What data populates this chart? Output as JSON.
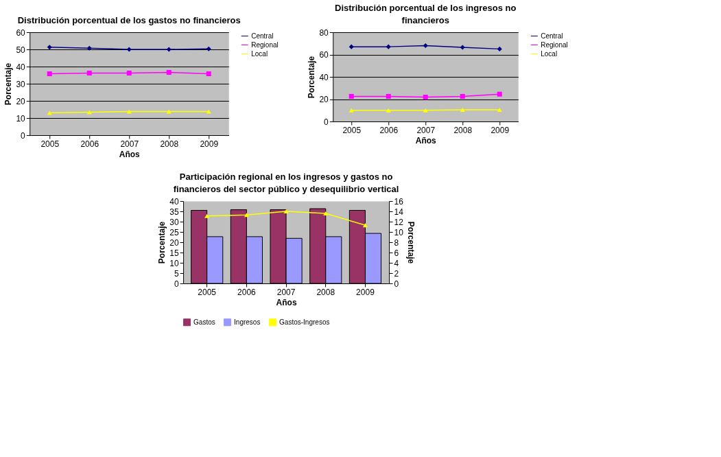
{
  "chart_data": [
    {
      "type": "line",
      "title": "Distribución porcentual de los gastos no financieros",
      "xlabel": "Años",
      "ylabel": "Porcentaje",
      "categories": [
        "2005",
        "2006",
        "2007",
        "2008",
        "2009"
      ],
      "ylim": [
        0,
        60
      ],
      "yticks": [
        0,
        10,
        20,
        30,
        40,
        50,
        60
      ],
      "grid": "y",
      "legend": "right",
      "series": [
        {
          "name": "Central",
          "color": "#000080",
          "marker": "diamond",
          "values": [
            51.3,
            50.7,
            50.0,
            50.0,
            50.3
          ]
        },
        {
          "name": "Regional",
          "color": "#ff00ff",
          "marker": "square",
          "values": [
            35.8,
            36.2,
            36.2,
            36.6,
            35.8
          ]
        },
        {
          "name": "Local",
          "color": "#ffff00",
          "marker": "triangle",
          "values": [
            13.0,
            13.4,
            13.8,
            13.8,
            13.8
          ]
        }
      ]
    },
    {
      "type": "line",
      "title": "Distribución porcentual de los ingresos no\nfinancieros",
      "xlabel": "Años",
      "ylabel": "Porcentaje",
      "categories": [
        "2005",
        "2006",
        "2007",
        "2008",
        "2009"
      ],
      "ylim": [
        0,
        80
      ],
      "yticks": [
        0,
        20,
        40,
        60,
        80
      ],
      "grid": "y",
      "legend": "right",
      "series": [
        {
          "name": "Central",
          "color": "#000080",
          "marker": "diamond",
          "values": [
            67.0,
            67.0,
            68.0,
            66.5,
            65.0
          ]
        },
        {
          "name": "Regional",
          "color": "#ff00ff",
          "marker": "square",
          "values": [
            22.5,
            22.5,
            21.8,
            22.5,
            24.5
          ]
        },
        {
          "name": "Local",
          "color": "#ffff00",
          "marker": "triangle",
          "values": [
            10.0,
            10.0,
            10.0,
            10.5,
            10.5
          ]
        }
      ]
    },
    {
      "type": "bar",
      "title": "Participación regional en los ingresos y gastos no\nfinancieros del sector público y desequilibrio vertical",
      "xlabel": "Años",
      "ylabel": "Porcentaje",
      "y2label": "Porcentaje",
      "categories": [
        "2005",
        "2006",
        "2007",
        "2008",
        "2009"
      ],
      "ylim": [
        0,
        40
      ],
      "yticks": [
        0,
        5,
        10,
        15,
        20,
        25,
        30,
        35,
        40
      ],
      "y2lim": [
        0,
        16
      ],
      "y2ticks": [
        0,
        2,
        4,
        6,
        8,
        10,
        12,
        14,
        16
      ],
      "grid": false,
      "legend": "bottom",
      "series": [
        {
          "name": "Gastos",
          "color": "#993366",
          "values": [
            35.5,
            35.8,
            35.8,
            36.3,
            35.5
          ]
        },
        {
          "name": "Ingresos",
          "color": "#9999ff",
          "values": [
            22.7,
            22.7,
            21.9,
            22.7,
            24.3
          ]
        },
        {
          "name": "Gastos-Ingresos",
          "type": "line",
          "axis": "y2",
          "color": "#ffff00",
          "marker": "triangle",
          "values": [
            13.1,
            13.3,
            14.0,
            13.6,
            11.3
          ]
        }
      ]
    }
  ]
}
